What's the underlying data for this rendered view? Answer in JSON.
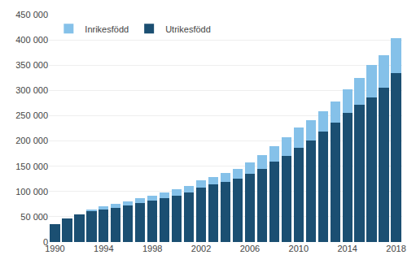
{
  "chart_data": {
    "type": "bar",
    "stacked": true,
    "categories": [
      "1990",
      null,
      null,
      null,
      "1994",
      null,
      null,
      null,
      "1998",
      null,
      null,
      null,
      "2002",
      null,
      null,
      null,
      "2006",
      null,
      null,
      null,
      "2010",
      null,
      null,
      null,
      "2014",
      null,
      null,
      null,
      "2018"
    ],
    "series": [
      {
        "name": "Utrikesfödd",
        "color": "#1b4f72",
        "values": [
          35000,
          46000,
          55000,
          62000,
          65000,
          68000,
          72000,
          77000,
          82000,
          87000,
          92000,
          98000,
          108000,
          114000,
          119000,
          125000,
          135000,
          145000,
          159000,
          171000,
          187000,
          201000,
          218000,
          236000,
          255000,
          272000,
          286000,
          306000,
          335000
        ]
      },
      {
        "name": "Inrikesfödd",
        "color": "#85c1e9",
        "values": [
          0,
          0,
          0,
          3000,
          5000,
          7000,
          8000,
          9000,
          10000,
          11000,
          12000,
          13000,
          14000,
          15000,
          17000,
          19000,
          23000,
          27000,
          31000,
          36000,
          39000,
          40000,
          41000,
          42000,
          47000,
          53000,
          65000,
          63000,
          68000
        ]
      }
    ],
    "ylim": [
      0,
      450000
    ],
    "yticks": [
      0,
      {
        "value": 50000,
        "label": "50 000"
      },
      {
        "value": 100000,
        "label": "100 000"
      },
      {
        "value": 150000,
        "label": "150 000"
      },
      {
        "value": 200000,
        "label": "200 000"
      },
      {
        "value": 250000,
        "label": "250 000"
      },
      {
        "value": 300000,
        "label": "300 000"
      },
      {
        "value": 350000,
        "label": "350 000"
      },
      {
        "value": 400000,
        "label": "400 000"
      },
      {
        "value": 450000,
        "label": "450 000"
      }
    ],
    "grid": true,
    "legend": "upper left"
  }
}
